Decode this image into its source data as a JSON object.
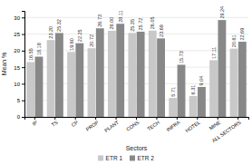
{
  "chart_data": {
    "type": "bar",
    "xlabel": "Sectors",
    "ylabel": "Mean %",
    "categories": [
      "IP",
      "TS",
      "CP",
      "PROP",
      "PLANT",
      "CONS",
      "TECH",
      "INFRA",
      "HOTEL",
      "MINE",
      "ALL SECTORS"
    ],
    "series": [
      {
        "name": "ETR 1",
        "color": "#c8c8c8",
        "values": [
          16.55,
          23.2,
          19.6,
          20.72,
          26.0,
          25.35,
          26.05,
          5.71,
          6.31,
          17.11,
          20.61
        ],
        "value_labels": [
          "16.55",
          "23.20",
          "19.60",
          "20.72",
          "26.00",
          "25.35",
          "26.05",
          "5.71",
          "6.31",
          "17.11",
          "20.61"
        ]
      },
      {
        "name": "ETR 2",
        "color": "#888888",
        "values": [
          18.18,
          25.32,
          22.25,
          26.73,
          28.11,
          25.72,
          23.69,
          15.73,
          9.04,
          29.24,
          22.69
        ],
        "value_labels": [
          "18.18",
          "25.32",
          "22.25",
          "26.73",
          "28.11",
          "25.72",
          "23.69",
          "15.73",
          "9.04",
          "29.24",
          "22.69"
        ]
      }
    ],
    "ylim": [
      0,
      32
    ],
    "yticks": [
      0,
      5,
      10,
      15,
      20,
      25,
      30
    ],
    "grid": true,
    "legend": "bottom",
    "data_labels": true
  }
}
